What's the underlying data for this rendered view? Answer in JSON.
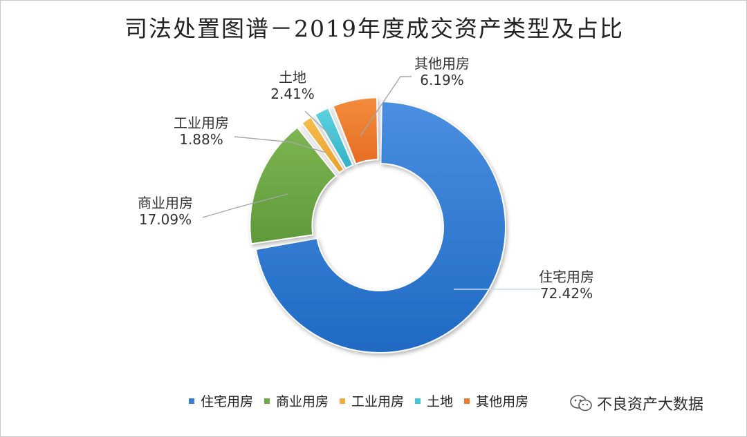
{
  "chart_data": {
    "type": "pie",
    "variant": "donut",
    "title": "司法处置图谱－2019年度成交资产类型及占比",
    "categories": [
      "住宅用房",
      "商业用房",
      "工业用房",
      "土地",
      "其他用房"
    ],
    "values": [
      72.42,
      17.09,
      1.88,
      2.41,
      6.19
    ],
    "value_labels": [
      "72.42%",
      "17.09%",
      "1.88%",
      "2.41%",
      "6.19%"
    ],
    "colors": [
      "#3b7fd6",
      "#6fab45",
      "#f3b03c",
      "#45c6d6",
      "#ee7c2e"
    ],
    "legend_position": "bottom"
  },
  "watermark": {
    "icon": "wechat-icon",
    "text": "不良资产大数据"
  }
}
